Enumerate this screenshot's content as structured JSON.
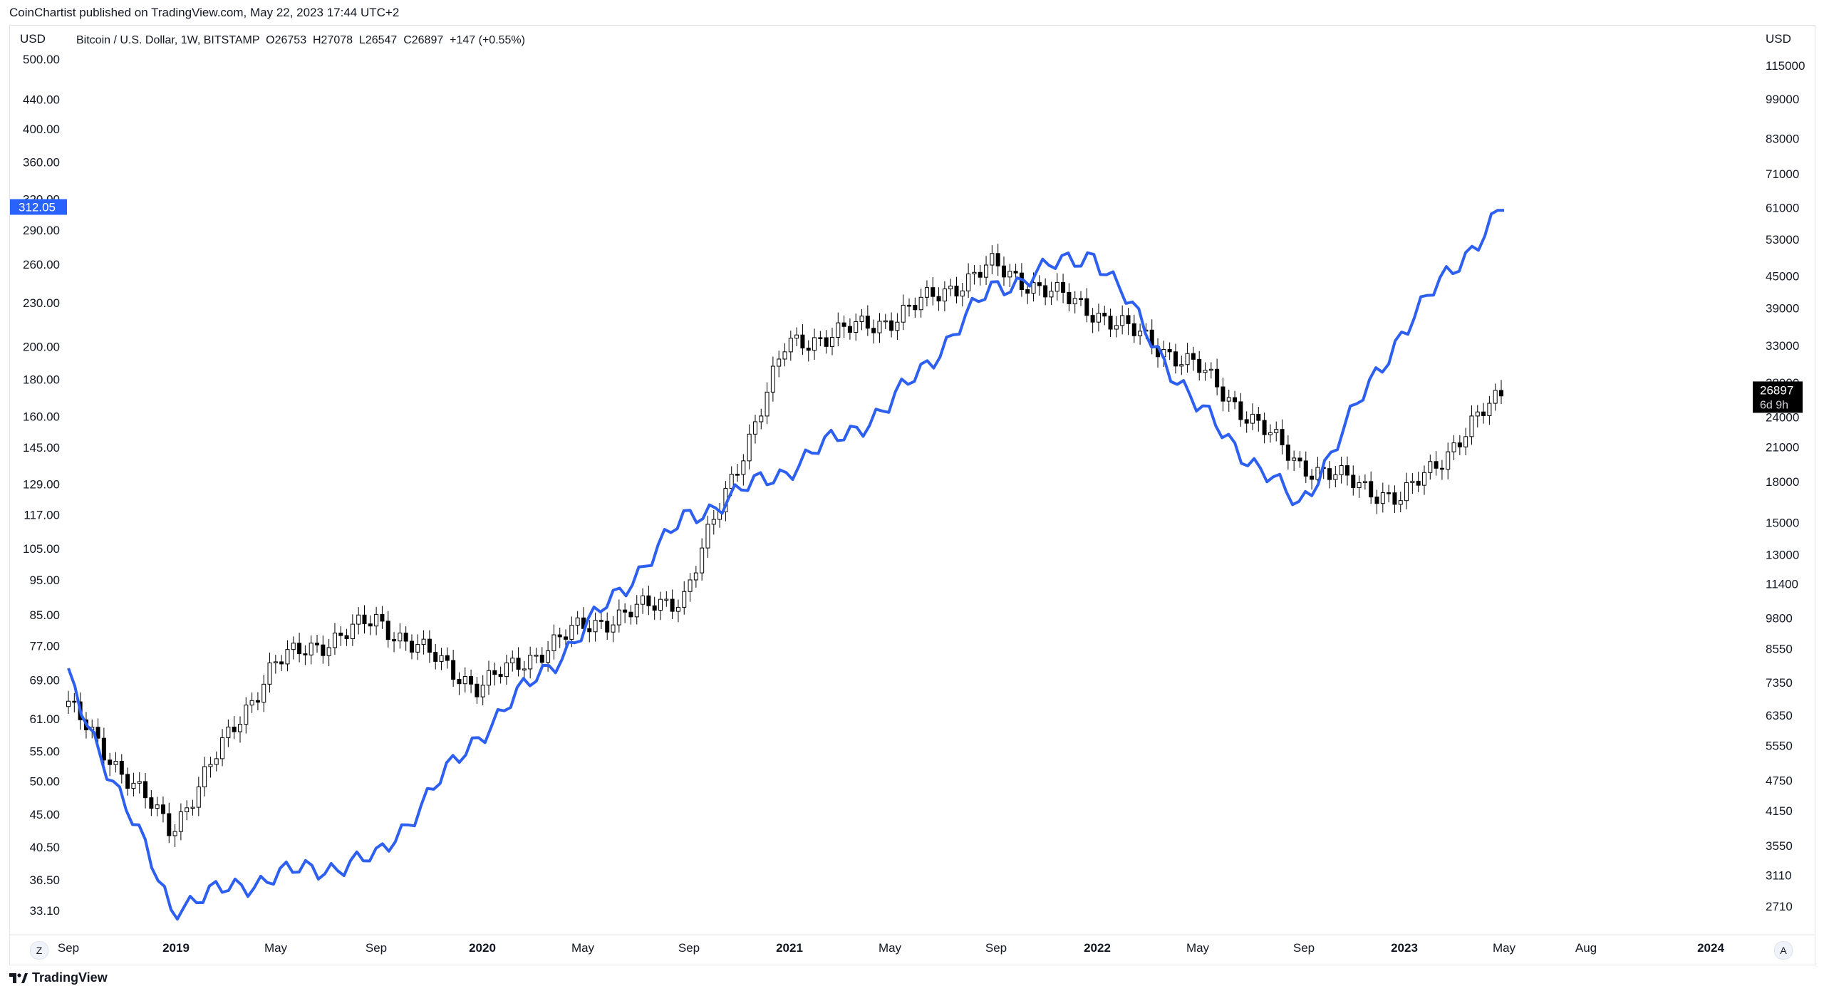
{
  "publisher_line": "CoinChartist published on TradingView.com, May 22, 2023 17:44 UTC+2",
  "legend": "Bitcoin / U.S. Dollar, 1W, BITSTAMP  O26753  H27078  L26547  C26897  +147 (+0.55%)",
  "left_axis_unit": "USD",
  "right_axis_unit": "USD",
  "left_ticks": [
    "500.00",
    "440.00",
    "400.00",
    "360.00",
    "320.00",
    "290.00",
    "260.00",
    "230.00",
    "200.00",
    "180.00",
    "160.00",
    "145.00",
    "129.00",
    "117.00",
    "105.00",
    "95.00",
    "85.00",
    "77.00",
    "69.00",
    "61.00",
    "55.00",
    "50.00",
    "45.00",
    "40.50",
    "36.50",
    "33.10"
  ],
  "right_ticks": [
    "115000",
    "99000",
    "83000",
    "71000",
    "61000",
    "53000",
    "45000",
    "39000",
    "33000",
    "28000",
    "24000",
    "21000",
    "18000",
    "15000",
    "13000",
    "11400",
    "9800",
    "8550",
    "7350",
    "6350",
    "5550",
    "4750",
    "4150",
    "3550",
    "3110",
    "2710"
  ],
  "time_labels": [
    {
      "t": "Sep",
      "bold": false
    },
    {
      "t": "2019",
      "bold": true
    },
    {
      "t": "May",
      "bold": false
    },
    {
      "t": "Sep",
      "bold": false
    },
    {
      "t": "2020",
      "bold": true
    },
    {
      "t": "May",
      "bold": false
    },
    {
      "t": "Sep",
      "bold": false
    },
    {
      "t": "2021",
      "bold": true
    },
    {
      "t": "May",
      "bold": false
    },
    {
      "t": "Sep",
      "bold": false
    },
    {
      "t": "2022",
      "bold": true
    },
    {
      "t": "May",
      "bold": false
    },
    {
      "t": "Sep",
      "bold": false
    },
    {
      "t": "2023",
      "bold": true
    },
    {
      "t": "May",
      "bold": false
    },
    {
      "t": "Aug",
      "bold": false
    },
    {
      "t": "2024",
      "bold": true
    }
  ],
  "left_price_badge": "312.05",
  "right_price_badge": "26897",
  "right_countdown": "6d 9h",
  "z_button": "Z",
  "a_button": "A",
  "brand": "TradingView",
  "colors": {
    "line": "#2d5ff0",
    "candle_up": "#ffffff",
    "candle_down": "#000000",
    "badge_left": "#2962ff",
    "badge_right": "#000000"
  },
  "chart_data": {
    "type": "candlestick+line",
    "right_axis": "BTC/USD price (log scale)",
    "left_axis": "overlay series (log scale)",
    "right_ylim": [
      2400,
      135000
    ],
    "left_ylim": [
      31,
      560
    ],
    "x": [
      "2018-09",
      "2019-01",
      "2019-05",
      "2019-09",
      "2020-01",
      "2020-05",
      "2020-09",
      "2021-01",
      "2021-05",
      "2021-09",
      "2022-01",
      "2022-05",
      "2022-09",
      "2023-01",
      "2023-05"
    ],
    "btc_close": [
      6600,
      3800,
      8000,
      9700,
      7200,
      9400,
      10800,
      33000,
      37000,
      47000,
      38500,
      30000,
      19500,
      16600,
      26897
    ],
    "overlay": [
      69,
      33.5,
      37,
      39,
      58,
      80,
      115,
      135,
      165,
      240,
      270,
      165,
      120,
      210,
      312.05
    ]
  }
}
